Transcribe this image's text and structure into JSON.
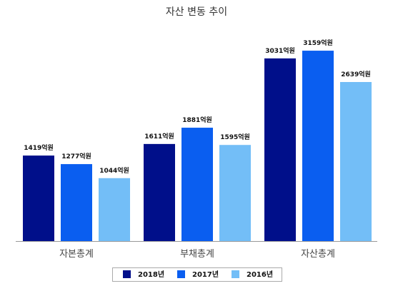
{
  "chart_data": {
    "type": "bar",
    "title": "자산 변동 추이",
    "categories": [
      "자본총계",
      "부채총계",
      "자산총계"
    ],
    "series": [
      {
        "name": "2018년",
        "color": "#000f8a",
        "values": [
          1419,
          1611,
          3031
        ],
        "labels": [
          "1419억원",
          "1611억원",
          "3031억원"
        ]
      },
      {
        "name": "2017년",
        "color": "#0a5ef0",
        "values": [
          1277,
          1881,
          3159
        ],
        "labels": [
          "1277억원",
          "1881억원",
          "3159억원"
        ]
      },
      {
        "name": "2016년",
        "color": "#73bef7",
        "values": [
          1044,
          1595,
          2639
        ],
        "labels": [
          "1044억원",
          "1595억원",
          "2639억원"
        ]
      }
    ],
    "ylim": [
      0,
      4000
    ],
    "grid": false,
    "legend": "bottom"
  }
}
